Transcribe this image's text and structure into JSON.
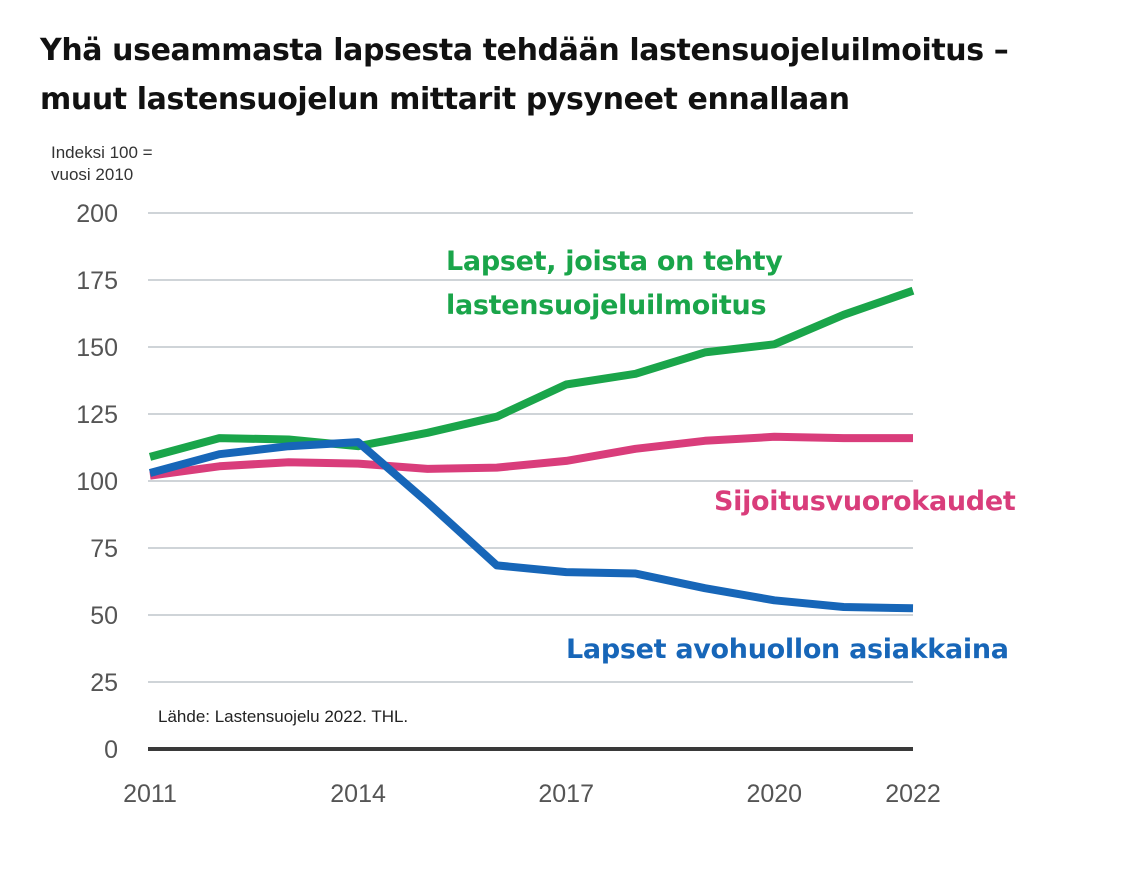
{
  "title": {
    "line1": "Yhä useammasta lapsesta tehdään lastensuojeluilmoitus –",
    "line2": "muut lastensuojelun mittarit pysyneet ennallaan"
  },
  "unit_label": {
    "line1": "Indeksi 100 =",
    "line2": "vuosi 2010"
  },
  "source": "Lähde: Lastensuojelu 2022. THL.",
  "colors": {
    "green": "#1aa54a",
    "pink": "#d93d7b",
    "blue": "#1766b8",
    "grid": "#cfd4d8",
    "baseline": "#3a3a3a"
  },
  "chart_data": {
    "type": "line",
    "title": "Yhä useammasta lapsesta tehdään lastensuojeluilmoitus – muut lastensuojelun mittarit pysyneet ennallaan",
    "ylabel": "Indeksi 100 = vuosi 2010",
    "xlabel": "",
    "x": [
      2011,
      2012,
      2013,
      2014,
      2015,
      2016,
      2017,
      2018,
      2019,
      2020,
      2021,
      2022
    ],
    "xlim": [
      2011,
      2022
    ],
    "ylim": [
      0,
      200
    ],
    "xticks": [
      "2011",
      "2014",
      "2017",
      "2020",
      "2022"
    ],
    "yticks": [
      "0",
      "25",
      "50",
      "75",
      "100",
      "125",
      "150",
      "175",
      "200"
    ],
    "grid": true,
    "series": [
      {
        "name": "Lapset, joista on tehty lastensuojeluilmoitus",
        "label_lines": [
          "Lapset, joista on tehty",
          "lastensuojeluilmoitus"
        ],
        "color": "#1aa54a",
        "values": [
          109,
          116,
          115.5,
          113,
          118,
          124,
          136,
          140,
          148,
          151,
          162,
          171
        ]
      },
      {
        "name": "Sijoitusvuorokaudet",
        "label_lines": [
          "Sijoitusvuorokaudet"
        ],
        "color": "#d93d7b",
        "values": [
          102,
          105.5,
          107,
          106.5,
          104.5,
          105,
          107.5,
          112,
          115,
          116.5,
          116,
          116
        ]
      },
      {
        "name": "Lapset avohuollon asiakkaina",
        "label_lines": [
          "Lapset avohuollon asiakkaina"
        ],
        "color": "#1766b8",
        "values": [
          103,
          110,
          113,
          114.5,
          92,
          68.5,
          66,
          65.5,
          60,
          55.5,
          53,
          52.5
        ]
      }
    ],
    "source": "Lähde: Lastensuojelu 2022. THL."
  }
}
